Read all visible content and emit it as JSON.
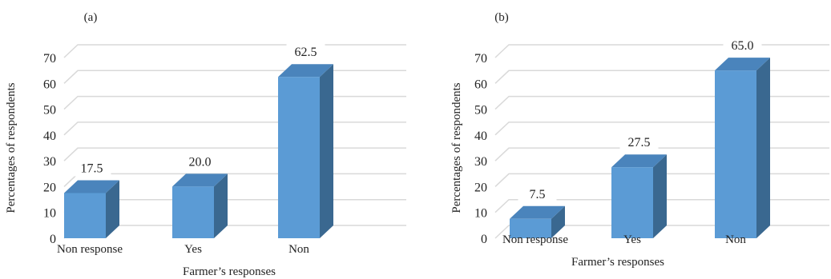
{
  "chart_data": [
    {
      "type": "bar",
      "panel_label": "(a)",
      "categories": [
        "Non response",
        "Yes",
        "Non"
      ],
      "values": [
        17.5,
        20.0,
        62.5
      ],
      "value_labels": [
        "17.5",
        "20.0",
        "62.5"
      ],
      "xlabel": "Farmer’s responses",
      "ylabel": "Percentages of respondents",
      "ylim": [
        0,
        70
      ],
      "yticks": [
        "0",
        "10",
        "20",
        "30",
        "40",
        "50",
        "60",
        "70"
      ],
      "grid": true,
      "legend": "none",
      "colors": {
        "front": "#5b9bd5",
        "side": "#3a6890",
        "top": "#4a84bc",
        "grid": "#d9d9d9"
      }
    },
    {
      "type": "bar",
      "panel_label": "(b)",
      "categories": [
        "Non response",
        "Yes",
        "Non"
      ],
      "values": [
        7.5,
        27.5,
        65.0
      ],
      "value_labels": [
        "7.5",
        "27.5",
        "65.0"
      ],
      "xlabel": "Farmer’s responses",
      "ylabel": "Percentages of respondents",
      "ylim": [
        0,
        70
      ],
      "yticks": [
        "0",
        "10",
        "20",
        "30",
        "40",
        "50",
        "60",
        "70"
      ],
      "grid": true,
      "legend": "none",
      "colors": {
        "front": "#5b9bd5",
        "side": "#3a6890",
        "top": "#4a84bc",
        "grid": "#d9d9d9"
      }
    }
  ]
}
